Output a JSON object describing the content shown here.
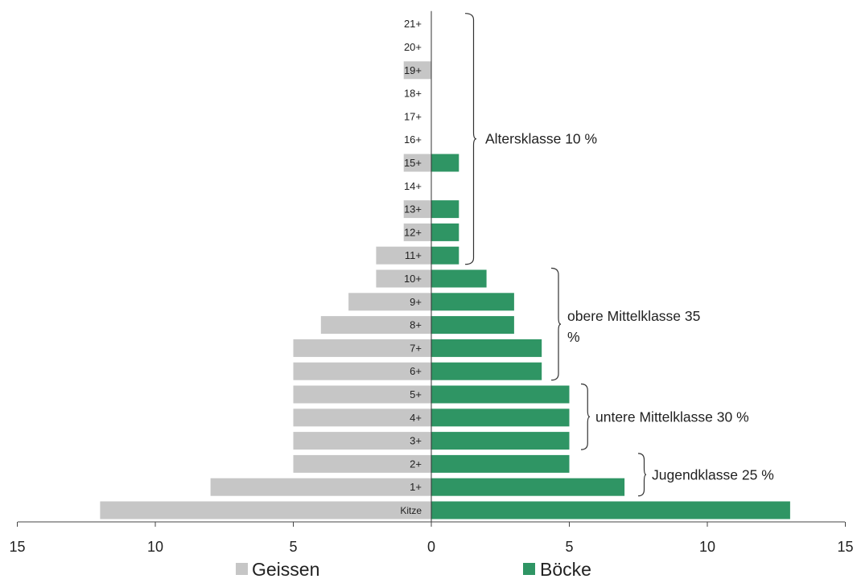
{
  "chart_data": {
    "type": "bar",
    "orientation": "horizontal",
    "layout": "population-pyramid",
    "categories": [
      "Kitze",
      "1+",
      "2+",
      "3+",
      "4+",
      "5+",
      "6+",
      "7+",
      "8+",
      "9+",
      "10+",
      "11+",
      "12+",
      "13+",
      "14+",
      "15+",
      "16+",
      "17+",
      "18+",
      "19+",
      "20+",
      "21+"
    ],
    "series": [
      {
        "name": "Geissen",
        "side": "left",
        "color": "#c6c6c6",
        "values": [
          12,
          8,
          5,
          5,
          5,
          5,
          5,
          5,
          4,
          3,
          2,
          2,
          1,
          1,
          0,
          1,
          0,
          0,
          0,
          1,
          0,
          0
        ]
      },
      {
        "name": "Böcke",
        "side": "right",
        "color": "#2f9564",
        "values": [
          13,
          7,
          5,
          5,
          5,
          5,
          4,
          4,
          3,
          3,
          2,
          1,
          1,
          1,
          0,
          1,
          0,
          0,
          0,
          0,
          0,
          0
        ]
      }
    ],
    "xlim": [
      -15,
      15
    ],
    "xticks": [
      -15,
      -10,
      -5,
      0,
      5,
      10,
      15
    ],
    "xtick_labels": [
      "15",
      "10",
      "5",
      "0",
      "5",
      "10",
      "15"
    ],
    "legend_position": "bottom",
    "grid": false,
    "annotations": [
      {
        "text": "Altersklasse 10 %",
        "from": "11+",
        "to": "21+"
      },
      {
        "text": "obere Mittelklasse 35 %",
        "from": "6+",
        "to": "10+"
      },
      {
        "text": "untere Mittelklasse 30 %",
        "from": "3+",
        "to": "5+"
      },
      {
        "text": "Jugendklasse 25 %",
        "from": "1+",
        "to": "2+"
      }
    ]
  }
}
